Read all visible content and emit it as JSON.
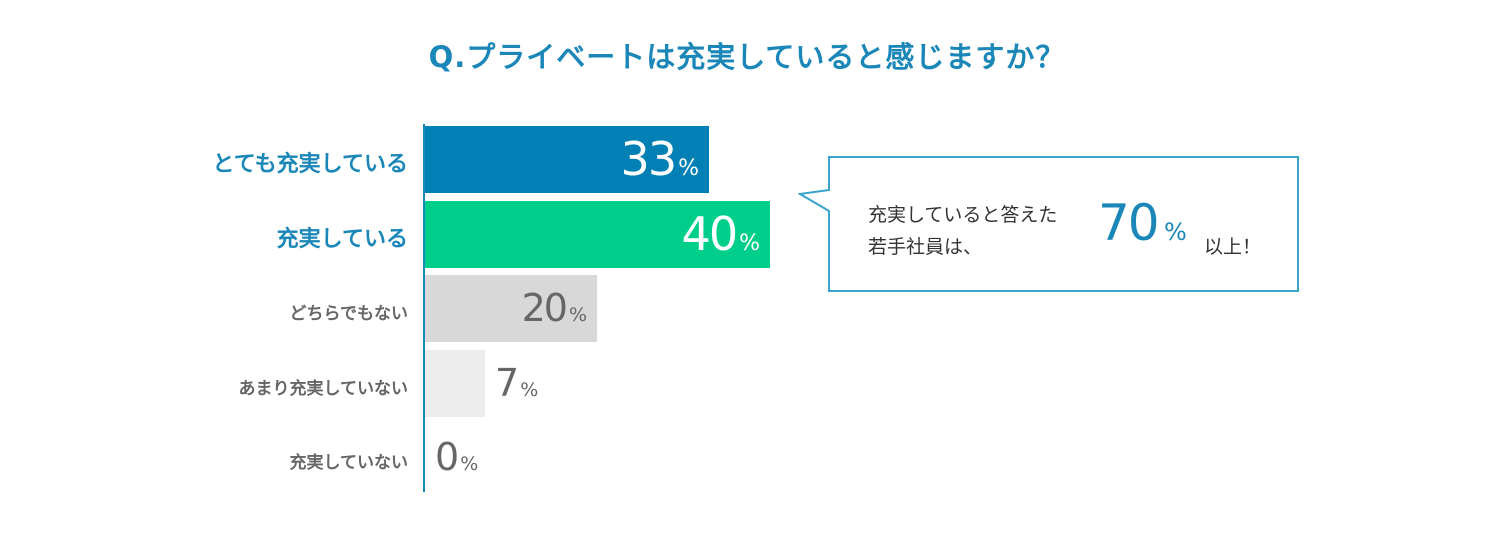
{
  "chart_data": {
    "type": "bar",
    "orientation": "horizontal",
    "title": "Q.プライベートは充実していると感じますか？",
    "categories": [
      "とても充実している",
      "充実している",
      "どちらでもない",
      "あまり充実していない",
      "充実していない"
    ],
    "values": [
      33,
      40,
      20,
      7,
      0
    ],
    "unit": "%",
    "xlim": [
      0,
      100
    ],
    "grid": false,
    "legend": "none",
    "colors": [
      "#0080b4",
      "#00cf8c",
      "#d8d8d8",
      "#ececec",
      "#ececec"
    ],
    "label_colors": [
      "#1a87b8",
      "#1a87b8",
      "#666666",
      "#666666",
      "#666666"
    ]
  },
  "callout": {
    "line1": "充実していると答えた",
    "line2": "若手社員は、",
    "big_value": "70",
    "big_unit": "%",
    "tail": "以上！"
  }
}
